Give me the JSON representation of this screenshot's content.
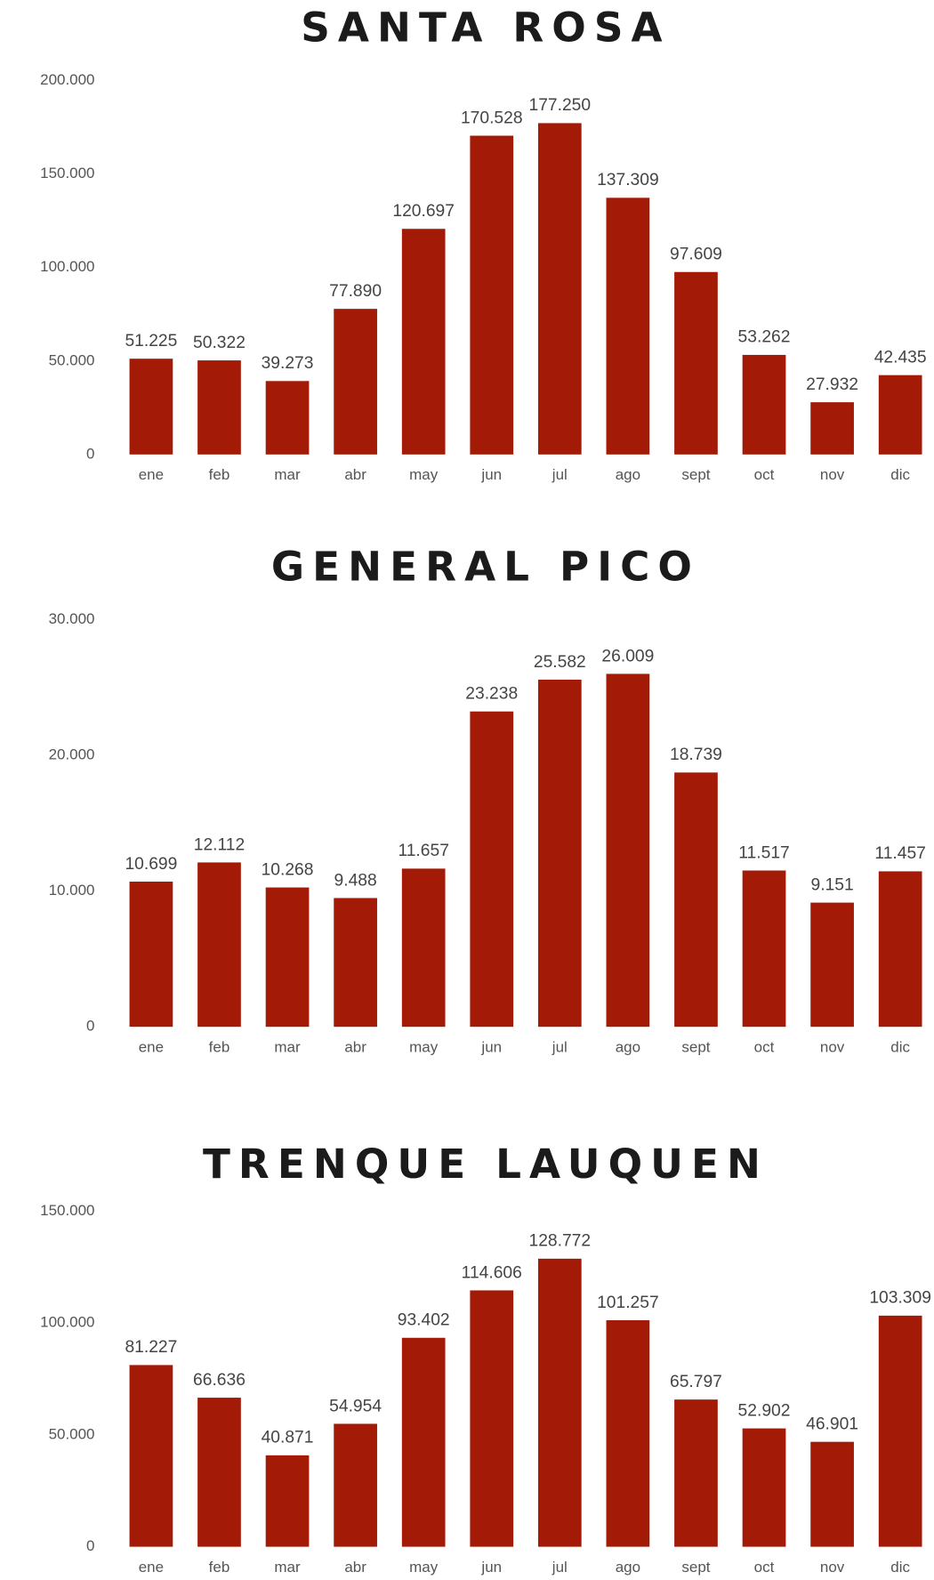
{
  "chart_data": [
    {
      "type": "bar",
      "title": "SANTA ROSA",
      "categories": [
        "ene",
        "feb",
        "mar",
        "abr",
        "may",
        "jun",
        "jul",
        "ago",
        "sept",
        "oct",
        "nov",
        "dic"
      ],
      "values": [
        51225,
        50322,
        39273,
        77890,
        120697,
        170528,
        177250,
        137309,
        97609,
        53262,
        27932,
        42435
      ],
      "value_labels": [
        "51.225",
        "50.322",
        "39.273",
        "77.890",
        "120.697",
        "170.528",
        "177.250",
        "137.309",
        "97.609",
        "53.262",
        "27.932",
        "42.435"
      ],
      "color": "#a31a07",
      "ylim": [
        0,
        200000
      ],
      "yticks": [
        0,
        {
          "value": 50000,
          "label": "50.000"
        },
        {
          "value": 100000,
          "label": "100.000"
        },
        {
          "value": 150000,
          "label": "150.000"
        },
        {
          "value": 200000,
          "label": "200.000"
        }
      ]
    },
    {
      "type": "bar",
      "title": "GENERAL PICO",
      "categories": [
        "ene",
        "feb",
        "mar",
        "abr",
        "may",
        "jun",
        "jul",
        "ago",
        "sept",
        "oct",
        "nov",
        "dic"
      ],
      "values": [
        10699,
        12112,
        10268,
        9488,
        11657,
        23238,
        25582,
        26009,
        18739,
        11517,
        9151,
        11457
      ],
      "value_labels": [
        "10.699",
        "12.112",
        "10.268",
        "9.488",
        "11.657",
        "23.238",
        "25.582",
        "26.009",
        "18.739",
        "11.517",
        "9.151",
        "11.457"
      ],
      "color": "#a31a07",
      "ylim": [
        0,
        30000
      ],
      "yticks": [
        0,
        {
          "value": 10000,
          "label": "10.000"
        },
        {
          "value": 20000,
          "label": "20.000"
        },
        {
          "value": 30000,
          "label": "30.000"
        }
      ]
    },
    {
      "type": "bar",
      "title": "TRENQUE LAUQUEN",
      "categories": [
        "ene",
        "feb",
        "mar",
        "abr",
        "may",
        "jun",
        "jul",
        "ago",
        "sept",
        "oct",
        "nov",
        "dic"
      ],
      "values": [
        81227,
        66636,
        40871,
        54954,
        93402,
        114606,
        128772,
        101257,
        65797,
        52902,
        46901,
        103309
      ],
      "value_labels": [
        "81.227",
        "66.636",
        "40.871",
        "54.954",
        "93.402",
        "114.606",
        "128.772",
        "101.257",
        "65.797",
        "52.902",
        "46.901",
        "103.309"
      ],
      "color": "#a31a07",
      "ylim": [
        0,
        150000
      ],
      "yticks": [
        0,
        {
          "value": 50000,
          "label": "50.000"
        },
        {
          "value": 100000,
          "label": "100.000"
        },
        {
          "value": 150000,
          "label": "150.000"
        }
      ]
    }
  ]
}
